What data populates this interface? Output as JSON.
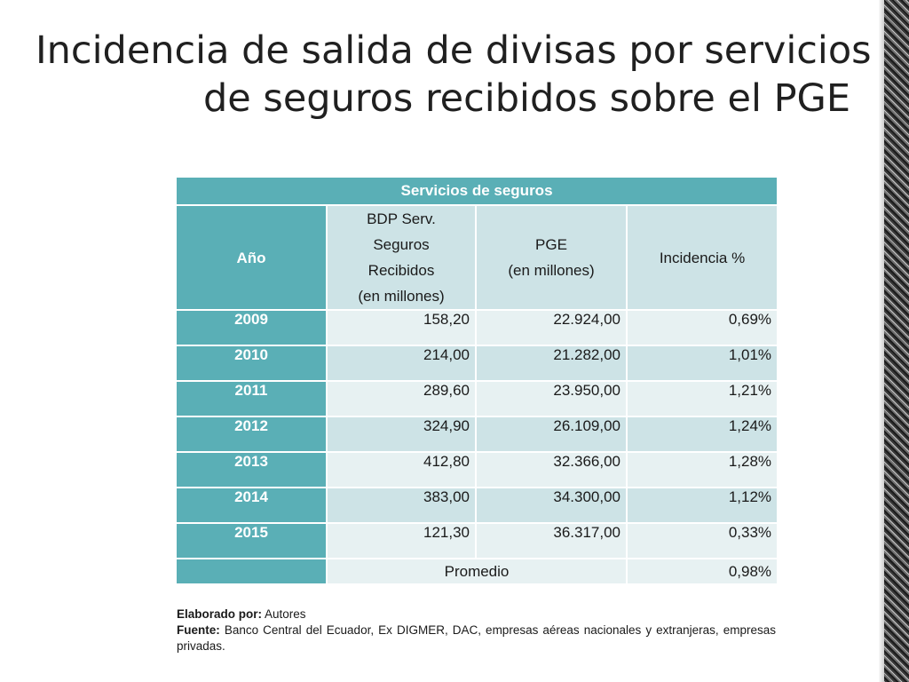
{
  "title": {
    "line1": "Incidencia de salida de divisas por servicios",
    "line2": "de seguros recibidos sobre el PGE"
  },
  "table": {
    "caption": "Servicios de seguros",
    "headers": {
      "year": "Año",
      "bdp_l1": "BDP Serv.",
      "bdp_l2": "Seguros",
      "bdp_l3": "Recibidos",
      "bdp_l4": "(en millones)",
      "pge_l1": "PGE",
      "pge_l2": "(en millones)",
      "inc": "Incidencia %"
    },
    "rows": [
      {
        "year": "2009",
        "bdp": "158,20",
        "pge": "22.924,00",
        "inc": "0,69%"
      },
      {
        "year": "2010",
        "bdp": "214,00",
        "pge": "21.282,00",
        "inc": "1,01%"
      },
      {
        "year": "2011",
        "bdp": "289,60",
        "pge": "23.950,00",
        "inc": "1,21%"
      },
      {
        "year": "2012",
        "bdp": "324,90",
        "pge": "26.109,00",
        "inc": "1,24%"
      },
      {
        "year": "2013",
        "bdp": "412,80",
        "pge": "32.366,00",
        "inc": "1,28%"
      },
      {
        "year": "2014",
        "bdp": "383,00",
        "pge": "34.300,00",
        "inc": "1,12%"
      },
      {
        "year": "2015",
        "bdp": "121,30",
        "pge": "36.317,00",
        "inc": "0,33%"
      }
    ],
    "average": {
      "label": "Promedio",
      "value": "0,98%"
    }
  },
  "notes": {
    "elaborado_label": "Elaborado por:",
    "elaborado_value": "Autores",
    "fuente_label": "Fuente:",
    "fuente_value": "Banco Central del Ecuador, Ex DIGMER, DAC, empresas aéreas nacionales y extranjeras, empresas privadas."
  },
  "colors": {
    "header_teal": "#5aafb6",
    "cell_dark": "#cde3e6",
    "cell_light": "#e7f1f2"
  }
}
